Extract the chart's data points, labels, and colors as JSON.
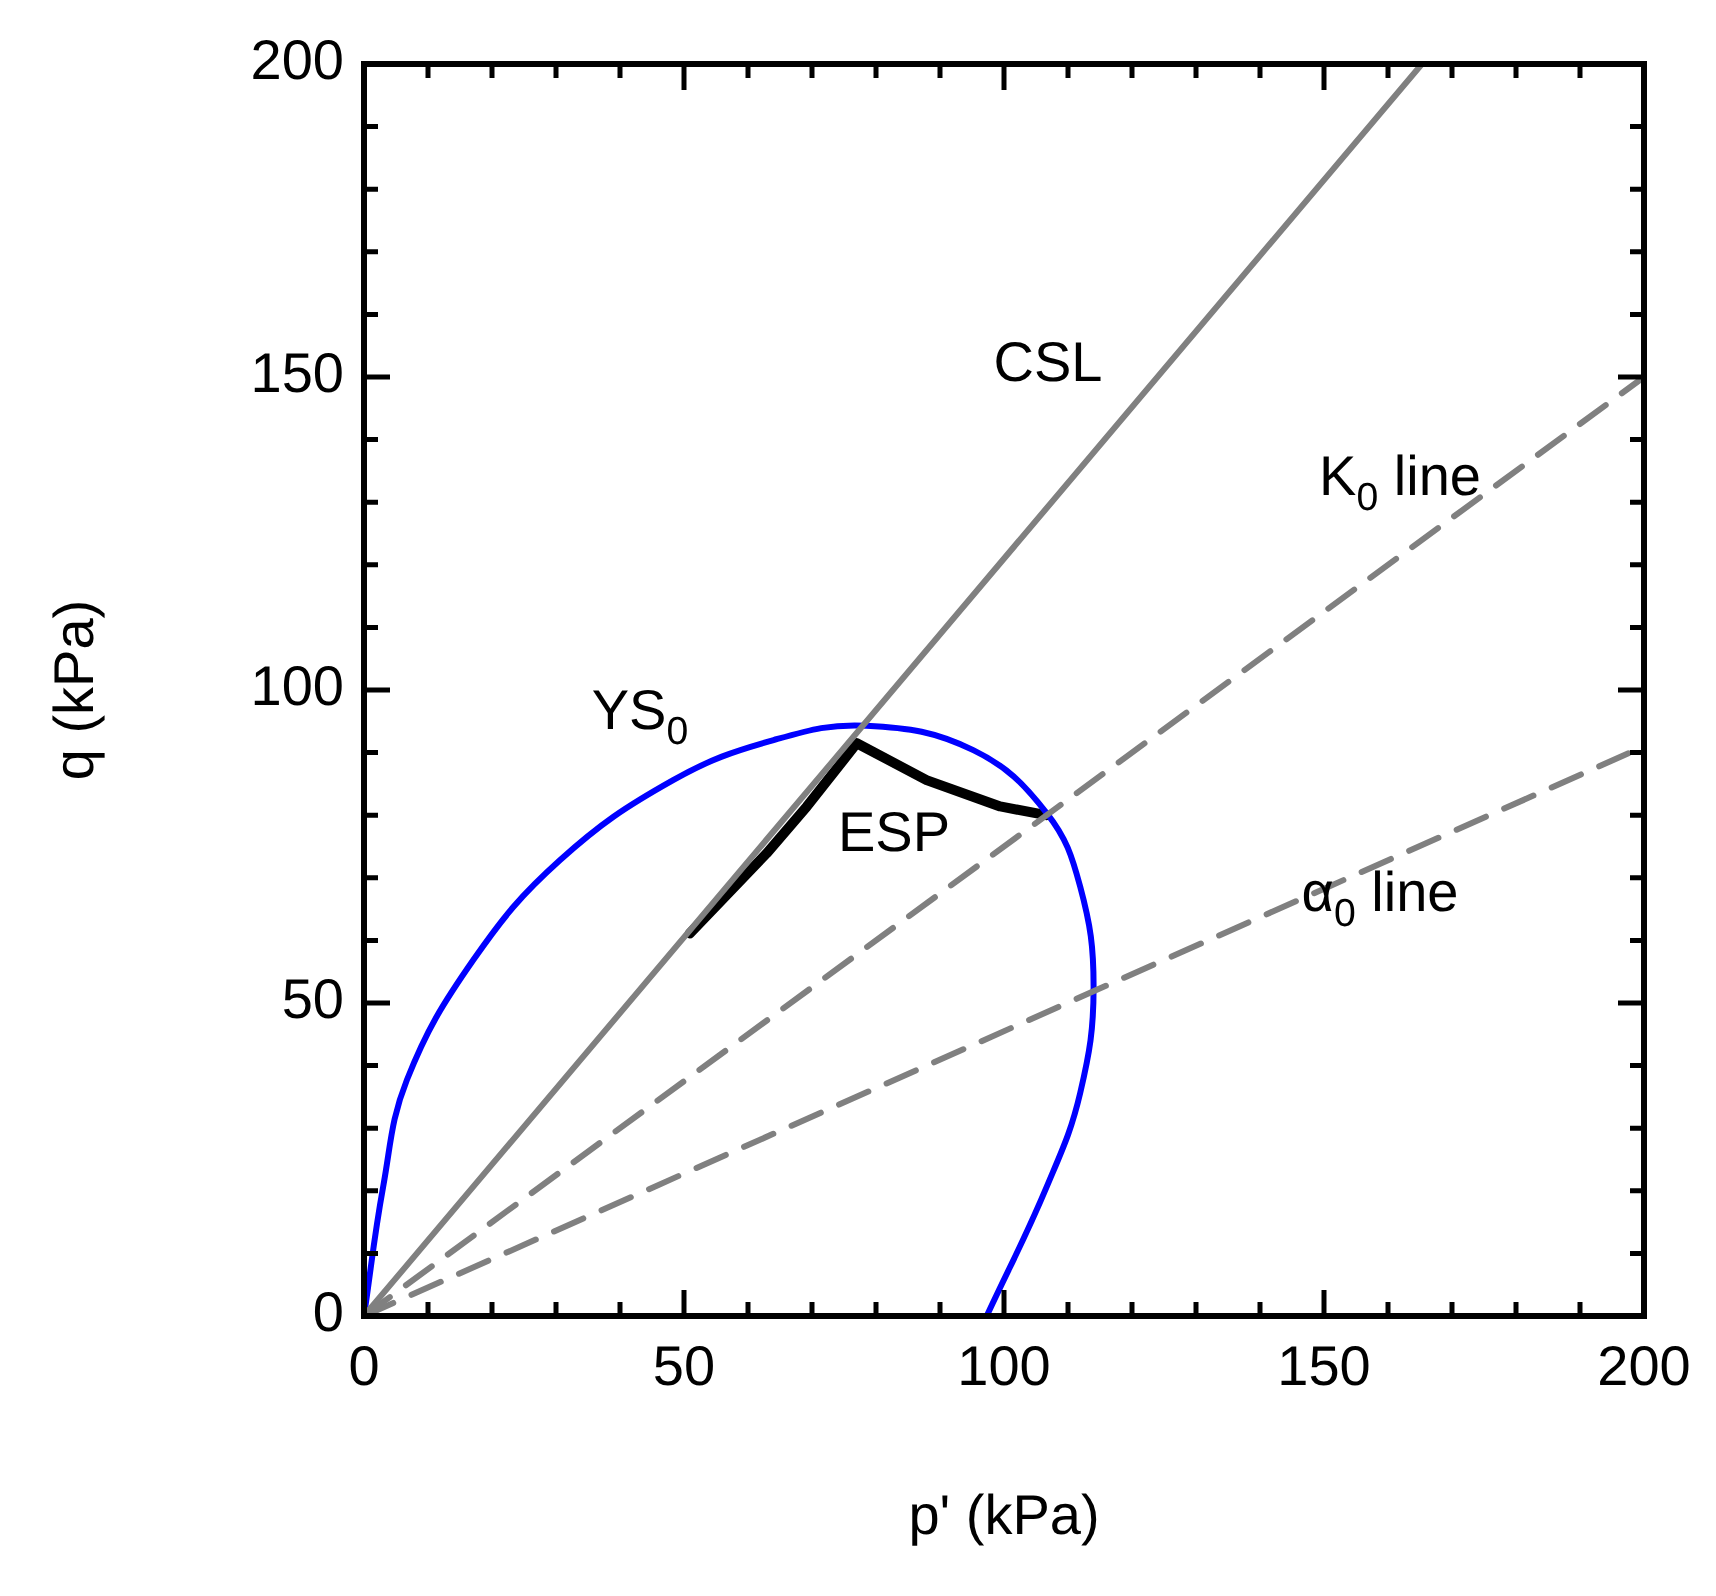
{
  "chart_data": {
    "type": "line",
    "xlabel": "p' (kPa)",
    "ylabel": "q (kPa)",
    "xlim": [
      0,
      200
    ],
    "ylim": [
      0,
      200
    ],
    "xticks": [
      0,
      {
        "value": 10,
        "label": null
      },
      {
        "value": 20,
        "label": null
      },
      {
        "value": 30,
        "label": null
      },
      {
        "value": 40,
        "label": null
      },
      50,
      {
        "value": 60,
        "label": null
      },
      {
        "value": 70,
        "label": null
      },
      {
        "value": 80,
        "label": null
      },
      {
        "value": 90,
        "label": null
      },
      100,
      {
        "value": 110,
        "label": null
      },
      {
        "value": 120,
        "label": null
      },
      {
        "value": 130,
        "label": null
      },
      {
        "value": 140,
        "label": null
      },
      150,
      {
        "value": 160,
        "label": null
      },
      {
        "value": 170,
        "label": null
      },
      {
        "value": 180,
        "label": null
      },
      {
        "value": 190,
        "label": null
      },
      200
    ],
    "yticks": [
      0,
      {
        "value": 10,
        "label": null
      },
      {
        "value": 20,
        "label": null
      },
      {
        "value": 30,
        "label": null
      },
      {
        "value": 40,
        "label": null
      },
      50,
      {
        "value": 60,
        "label": null
      },
      {
        "value": 70,
        "label": null
      },
      {
        "value": 80,
        "label": null
      },
      {
        "value": 90,
        "label": null
      },
      100,
      {
        "value": 110,
        "label": null
      },
      {
        "value": 120,
        "label": null
      },
      {
        "value": 130,
        "label": null
      },
      {
        "value": 140,
        "label": null
      },
      150,
      {
        "value": 160,
        "label": null
      },
      {
        "value": 170,
        "label": null
      },
      {
        "value": 180,
        "label": null
      },
      {
        "value": 190,
        "label": null
      },
      200
    ],
    "grid": false,
    "legend": false,
    "marker": "none",
    "series": [
      {
        "name": "CSL",
        "color": "#808080",
        "line_style": "solid",
        "x": [
          0,
          165.3
        ],
        "values": [
          0,
          200
        ]
      },
      {
        "name": "K$_{0}$ line",
        "color": "#808080",
        "line_style": "dashed",
        "x": [
          0,
          200
        ],
        "values": [
          0,
          150
        ]
      },
      {
        "name": "α$_{0}$ line",
        "color": "#808080",
        "line_style": "dashed",
        "x": [
          0,
          200
        ],
        "values": [
          0,
          91
        ]
      },
      {
        "name": "YS$_{0}$",
        "color": "#0000ff",
        "line_style": "solid",
        "x": [
          0,
          3,
          6.7,
          17.1,
          30.6,
          48.3,
          64,
          78.5,
          95.2,
          106.7,
          111.9,
          114,
          111.9,
          106.7,
          97.3
        ],
        "values": [
          0,
          20.7,
          37.7,
          56.9,
          72.8,
          85.6,
          92,
          94.3,
          90.4,
          80.3,
          68.6,
          52.6,
          35.6,
          20.7,
          0
        ]
      },
      {
        "name": "ESP",
        "color": "#000000",
        "line_style": "solid",
        "x": [
          106.6,
          99.4,
          87.9,
          77,
          69.2,
          62.9,
          50.9
        ],
        "values": [
          80,
          81.4,
          85.6,
          91.5,
          81.4,
          73.9,
          61.1
        ]
      }
    ]
  }
}
